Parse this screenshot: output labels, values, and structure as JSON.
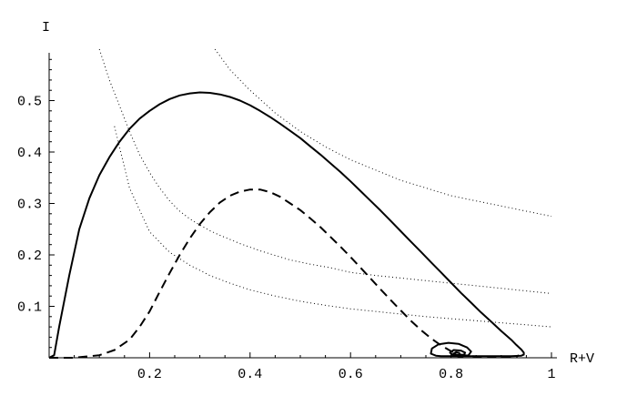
{
  "chart_data": {
    "type": "line",
    "xlabel": "R+V",
    "ylabel": "I",
    "xlim": [
      0,
      1
    ],
    "ylim": [
      0,
      0.6
    ],
    "x_ticks": [
      0.2,
      0.4,
      0.6,
      0.8,
      1
    ],
    "x_tick_labels": [
      "0.2",
      "0.4",
      "0.6",
      "0.8",
      "1"
    ],
    "y_ticks": [
      0.1,
      0.2,
      0.3,
      0.4,
      0.5
    ],
    "y_tick_labels": [
      "0.1",
      "0.2",
      "0.3",
      "0.4",
      "0.5"
    ],
    "grid": false,
    "legend": "none",
    "series": [
      {
        "style": "solid",
        "color": "#000000",
        "x": [
          0.0,
          0.01,
          0.02,
          0.04,
          0.06,
          0.08,
          0.1,
          0.12,
          0.14,
          0.16,
          0.18,
          0.2,
          0.22,
          0.24,
          0.26,
          0.28,
          0.3,
          0.32,
          0.34,
          0.36,
          0.38,
          0.4,
          0.42,
          0.44,
          0.46,
          0.48,
          0.5,
          0.52,
          0.54,
          0.56,
          0.58,
          0.6,
          0.62,
          0.64,
          0.66,
          0.68,
          0.7,
          0.72,
          0.74,
          0.76,
          0.78,
          0.8,
          0.82,
          0.84,
          0.86,
          0.88,
          0.9,
          0.92,
          0.93,
          0.94,
          0.945,
          0.945,
          0.94,
          0.92,
          0.9,
          0.88,
          0.86,
          0.84,
          0.82,
          0.8,
          0.78,
          0.77,
          0.76,
          0.762,
          0.775,
          0.795,
          0.815,
          0.832,
          0.84,
          0.835,
          0.82,
          0.805,
          0.798,
          0.805,
          0.82,
          0.828,
          0.826,
          0.815,
          0.805,
          0.81,
          0.818
        ],
        "y": [
          0.0,
          0.005,
          0.06,
          0.16,
          0.25,
          0.31,
          0.355,
          0.39,
          0.42,
          0.445,
          0.465,
          0.48,
          0.493,
          0.503,
          0.51,
          0.514,
          0.516,
          0.515,
          0.512,
          0.507,
          0.5,
          0.491,
          0.48,
          0.468,
          0.455,
          0.441,
          0.427,
          0.411,
          0.395,
          0.378,
          0.361,
          0.343,
          0.324,
          0.305,
          0.286,
          0.266,
          0.246,
          0.226,
          0.206,
          0.186,
          0.166,
          0.146,
          0.126,
          0.107,
          0.088,
          0.07,
          0.052,
          0.035,
          0.025,
          0.016,
          0.01,
          0.006,
          0.004,
          0.003,
          0.003,
          0.003,
          0.003,
          0.003,
          0.003,
          0.003,
          0.003,
          0.004,
          0.008,
          0.018,
          0.026,
          0.029,
          0.027,
          0.02,
          0.012,
          0.005,
          0.002,
          0.004,
          0.01,
          0.015,
          0.014,
          0.01,
          0.006,
          0.005,
          0.008,
          0.011,
          0.009
        ]
      },
      {
        "style": "dashed",
        "color": "#000000",
        "x": [
          0.0,
          0.05,
          0.1,
          0.13,
          0.16,
          0.18,
          0.2,
          0.22,
          0.24,
          0.26,
          0.28,
          0.3,
          0.32,
          0.34,
          0.36,
          0.38,
          0.4,
          0.42,
          0.44,
          0.46,
          0.48,
          0.5,
          0.52,
          0.54,
          0.56,
          0.58,
          0.6,
          0.62,
          0.64,
          0.66,
          0.68,
          0.7,
          0.72,
          0.74,
          0.76,
          0.78,
          0.8,
          0.82,
          0.84,
          0.86,
          0.88,
          0.9,
          0.92,
          0.93,
          0.935
        ],
        "y": [
          0.0,
          0.0,
          0.005,
          0.015,
          0.035,
          0.06,
          0.09,
          0.128,
          0.165,
          0.2,
          0.232,
          0.26,
          0.283,
          0.302,
          0.315,
          0.323,
          0.327,
          0.327,
          0.322,
          0.313,
          0.3,
          0.287,
          0.271,
          0.254,
          0.235,
          0.216,
          0.196,
          0.175,
          0.154,
          0.133,
          0.112,
          0.092,
          0.072,
          0.054,
          0.038,
          0.024,
          0.013,
          0.006,
          0.003,
          0.002,
          0.001,
          0.001,
          0.001,
          0.002,
          0.005
        ]
      },
      {
        "style": "dotted",
        "color": "#000000",
        "x": [
          0.13,
          0.16,
          0.2,
          0.24,
          0.28,
          0.32,
          0.36,
          0.4,
          0.45,
          0.5,
          0.55,
          0.6,
          0.65,
          0.7,
          0.75,
          0.8,
          0.85,
          0.9,
          0.95,
          1.0
        ],
        "y": [
          0.45,
          0.33,
          0.245,
          0.205,
          0.18,
          0.16,
          0.145,
          0.132,
          0.12,
          0.11,
          0.102,
          0.095,
          0.09,
          0.085,
          0.08,
          0.076,
          0.072,
          0.068,
          0.064,
          0.06
        ]
      },
      {
        "style": "dotted",
        "color": "#000000",
        "x": [
          0.1,
          0.12,
          0.14,
          0.16,
          0.18,
          0.2,
          0.22,
          0.24,
          0.26,
          0.28,
          0.3,
          0.32,
          0.34,
          0.36,
          0.38,
          0.4,
          0.42,
          0.44,
          0.46,
          0.48,
          0.5,
          0.52,
          0.56,
          0.6,
          0.65,
          0.7,
          0.75,
          0.8,
          0.85,
          0.9,
          0.95,
          1.0
        ],
        "y": [
          0.6,
          0.54,
          0.49,
          0.44,
          0.395,
          0.36,
          0.33,
          0.305,
          0.285,
          0.27,
          0.258,
          0.247,
          0.238,
          0.23,
          0.222,
          0.215,
          0.208,
          0.202,
          0.196,
          0.19,
          0.186,
          0.182,
          0.175,
          0.166,
          0.16,
          0.155,
          0.15,
          0.145,
          0.14,
          0.135,
          0.13,
          0.125
        ]
      },
      {
        "style": "dotted",
        "color": "#000000",
        "x": [
          0.33,
          0.36,
          0.4,
          0.45,
          0.5,
          0.55,
          0.6,
          0.65,
          0.7,
          0.75,
          0.8,
          0.85,
          0.9,
          0.95,
          1.0
        ],
        "y": [
          0.6,
          0.56,
          0.52,
          0.476,
          0.44,
          0.41,
          0.385,
          0.365,
          0.345,
          0.33,
          0.315,
          0.305,
          0.295,
          0.285,
          0.275
        ]
      }
    ]
  }
}
